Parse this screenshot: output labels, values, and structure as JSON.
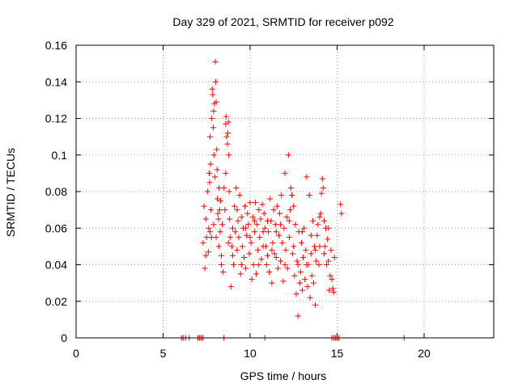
{
  "chart_data": {
    "type": "scatter",
    "title": "Day 329 of 2021, SRMTID for receiver p092",
    "xlabel": "GPS time / hours",
    "ylabel": "SRMTID / TECUs",
    "xlim": [
      0,
      24
    ],
    "ylim": [
      0,
      0.16
    ],
    "xticks": [
      0,
      5,
      10,
      15,
      20
    ],
    "xtick_labels": [
      "0",
      "5",
      "10",
      "15",
      "20"
    ],
    "yticks": [
      0,
      0.02,
      0.04,
      0.06,
      0.08,
      0.1,
      0.12,
      0.14,
      0.16
    ],
    "ytick_labels": [
      "0",
      "0.02",
      "0.04",
      "0.06",
      "0.08",
      "0.1",
      "0.12",
      "0.14",
      "0.16"
    ],
    "grid": true,
    "marker": "+",
    "color": "#ff0000",
    "grid_color": "#a0a0a0",
    "series": [
      {
        "name": "p092",
        "points": [
          [
            6.05,
            0
          ],
          [
            6.15,
            0
          ],
          [
            6.3,
            0
          ],
          [
            6.5,
            0
          ],
          [
            7.0,
            0
          ],
          [
            7.1,
            0
          ],
          [
            7.2,
            0
          ],
          [
            7.3,
            0
          ],
          [
            8.5,
            0
          ],
          [
            10.85,
            0
          ],
          [
            14.7,
            0
          ],
          [
            14.8,
            0
          ],
          [
            14.9,
            0
          ],
          [
            15.0,
            0
          ],
          [
            15.1,
            0
          ],
          [
            18.85,
            0
          ],
          [
            7.3,
            0.052
          ],
          [
            7.35,
            0.072
          ],
          [
            7.4,
            0.038
          ],
          [
            7.45,
            0.065
          ],
          [
            7.5,
            0.055
          ],
          [
            7.55,
            0.08
          ],
          [
            7.6,
            0.047
          ],
          [
            7.62,
            0.06
          ],
          [
            7.65,
            0.09
          ],
          [
            7.68,
            0.085
          ],
          [
            7.7,
            0.11
          ],
          [
            7.72,
            0.095
          ],
          [
            7.75,
            0.07
          ],
          [
            7.78,
            0.055
          ],
          [
            7.8,
            0.12
          ],
          [
            7.82,
            0.136
          ],
          [
            7.85,
            0.133
          ],
          [
            7.88,
            0.115
          ],
          [
            7.9,
            0.124
          ],
          [
            7.92,
            0.1
          ],
          [
            7.95,
            0.128
          ],
          [
            7.98,
            0.088
          ],
          [
            8.0,
            0.151
          ],
          [
            8.02,
            0.14
          ],
          [
            8.05,
            0.129
          ],
          [
            8.08,
            0.103
          ],
          [
            8.1,
            0.092
          ],
          [
            8.12,
            0.076
          ],
          [
            8.15,
            0.068
          ],
          [
            8.18,
            0.065
          ],
          [
            8.2,
            0.05
          ],
          [
            8.22,
            0.082
          ],
          [
            8.25,
            0.07
          ],
          [
            8.28,
            0.058
          ],
          [
            8.3,
            0.075
          ],
          [
            8.35,
            0.045
          ],
          [
            8.4,
            0.062
          ],
          [
            8.45,
            0.036
          ],
          [
            8.5,
            0.082
          ],
          [
            8.55,
            0.07
          ],
          [
            8.6,
            0.117
          ],
          [
            8.62,
            0.121
          ],
          [
            8.65,
            0.11
          ],
          [
            8.7,
            0.106
          ],
          [
            8.72,
            0.112
          ],
          [
            8.75,
            0.118
          ],
          [
            8.78,
            0.1
          ],
          [
            8.8,
            0.08
          ],
          [
            8.82,
            0.065
          ],
          [
            8.85,
            0.055
          ],
          [
            8.9,
            0.028
          ],
          [
            8.95,
            0.05
          ],
          [
            9.0,
            0.06
          ],
          [
            9.05,
            0.04
          ],
          [
            9.1,
            0.072
          ],
          [
            9.15,
            0.058
          ],
          [
            9.2,
            0.082
          ],
          [
            9.25,
            0.048
          ],
          [
            9.3,
            0.064
          ],
          [
            9.35,
            0.055
          ],
          [
            9.4,
            0.078
          ],
          [
            9.45,
            0.035
          ],
          [
            9.5,
            0.066
          ],
          [
            9.55,
            0.05
          ],
          [
            9.6,
            0.06
          ],
          [
            9.65,
            0.044
          ],
          [
            9.7,
            0.072
          ],
          [
            9.75,
            0.038
          ],
          [
            9.8,
            0.056
          ],
          [
            9.85,
            0.068
          ],
          [
            9.9,
            0.062
          ],
          [
            9.95,
            0.046
          ],
          [
            10.0,
            0.074
          ],
          [
            10.05,
            0.052
          ],
          [
            10.1,
            0.032
          ],
          [
            10.15,
            0.066
          ],
          [
            10.2,
            0.04
          ],
          [
            10.25,
            0.058
          ],
          [
            10.3,
            0.074
          ],
          [
            10.35,
            0.035
          ],
          [
            10.4,
            0.062
          ],
          [
            10.45,
            0.048
          ],
          [
            10.5,
            0.07
          ],
          [
            10.55,
            0.055
          ],
          [
            10.6,
            0.065
          ],
          [
            10.65,
            0.043
          ],
          [
            10.7,
            0.073
          ],
          [
            10.75,
            0.05
          ],
          [
            10.8,
            0.068
          ],
          [
            10.85,
            0.06
          ],
          [
            10.9,
            0.05
          ],
          [
            10.95,
            0.04
          ],
          [
            11.0,
            0.045
          ],
          [
            11.05,
            0.058
          ],
          [
            11.1,
            0.036
          ],
          [
            11.15,
            0.076
          ],
          [
            11.2,
            0.064
          ],
          [
            11.25,
            0.03
          ],
          [
            11.3,
            0.052
          ],
          [
            11.35,
            0.07
          ],
          [
            11.4,
            0.046
          ],
          [
            11.45,
            0.062
          ],
          [
            11.5,
            0.044
          ],
          [
            11.55,
            0.072
          ],
          [
            11.6,
            0.038
          ],
          [
            11.65,
            0.056
          ],
          [
            11.7,
            0.068
          ],
          [
            11.75,
            0.042
          ],
          [
            11.8,
            0.078
          ],
          [
            11.85,
            0.052
          ],
          [
            11.9,
            0.031
          ],
          [
            11.95,
            0.06
          ],
          [
            12.0,
            0.09
          ],
          [
            12.05,
            0.048
          ],
          [
            12.1,
            0.066
          ],
          [
            12.15,
            0.038
          ],
          [
            12.2,
            0.1
          ],
          [
            12.25,
            0.055
          ],
          [
            12.3,
            0.07
          ],
          [
            12.35,
            0.082
          ],
          [
            12.4,
            0.078
          ],
          [
            12.45,
            0.046
          ],
          [
            12.5,
            0.05
          ],
          [
            12.55,
            0.034
          ],
          [
            12.6,
            0.062
          ],
          [
            12.65,
            0.024
          ],
          [
            12.7,
            0.042
          ],
          [
            12.75,
            0.012
          ],
          [
            12.8,
            0.058
          ],
          [
            12.85,
            0.03
          ],
          [
            12.9,
            0.036
          ],
          [
            12.95,
            0.052
          ],
          [
            13.0,
            0.026
          ],
          [
            13.05,
            0.044
          ],
          [
            13.1,
            0.06
          ],
          [
            13.15,
            0.032
          ],
          [
            13.2,
            0.048
          ],
          [
            13.25,
            0.088
          ],
          [
            13.3,
            0.028
          ],
          [
            13.35,
            0.04
          ],
          [
            13.4,
            0.078
          ],
          [
            13.45,
            0.022
          ],
          [
            13.5,
            0.046
          ],
          [
            13.55,
            0.034
          ],
          [
            13.6,
            0.064
          ],
          [
            13.65,
            0.03
          ],
          [
            13.7,
            0.05
          ],
          [
            13.75,
            0.018
          ],
          [
            13.8,
            0.042
          ],
          [
            13.85,
            0.056
          ],
          [
            13.9,
            0.062
          ],
          [
            13.95,
            0.04
          ],
          [
            14.0,
            0.066
          ],
          [
            14.05,
            0.068
          ],
          [
            14.1,
            0.079
          ],
          [
            14.15,
            0.087
          ],
          [
            14.2,
            0.082
          ],
          [
            14.25,
            0.064
          ],
          [
            14.3,
            0.05
          ],
          [
            14.35,
            0.06
          ],
          [
            14.4,
            0.04
          ],
          [
            14.45,
            0.054
          ],
          [
            14.5,
            0.06
          ],
          [
            14.55,
            0.026
          ],
          [
            14.6,
            0.034
          ],
          [
            14.65,
            0.048
          ],
          [
            14.7,
            0.032
          ],
          [
            14.75,
            0.027
          ],
          [
            14.8,
            0.025
          ],
          [
            14.85,
            0.044
          ],
          [
            15.2,
            0.073
          ],
          [
            15.25,
            0.068
          ],
          [
            7.45,
            0.045
          ],
          [
            7.7,
            0.058
          ],
          [
            7.9,
            0.062
          ],
          [
            8.05,
            0.055
          ],
          [
            8.35,
            0.04
          ],
          [
            8.6,
            0.09
          ],
          [
            8.75,
            0.052
          ],
          [
            9.0,
            0.045
          ],
          [
            9.25,
            0.07
          ],
          [
            9.5,
            0.04
          ],
          [
            9.75,
            0.06
          ],
          [
            10.0,
            0.055
          ],
          [
            10.25,
            0.064
          ],
          [
            10.5,
            0.04
          ],
          [
            10.75,
            0.058
          ],
          [
            11.0,
            0.064
          ],
          [
            11.25,
            0.048
          ],
          [
            11.5,
            0.058
          ],
          [
            11.75,
            0.062
          ],
          [
            12.0,
            0.04
          ],
          [
            12.25,
            0.064
          ],
          [
            12.5,
            0.072
          ],
          [
            12.75,
            0.04
          ],
          [
            13.0,
            0.058
          ],
          [
            13.25,
            0.04
          ],
          [
            13.5,
            0.056
          ],
          [
            13.75,
            0.048
          ],
          [
            14.0,
            0.05
          ],
          [
            14.25,
            0.046
          ],
          [
            14.5,
            0.042
          ]
        ]
      }
    ]
  }
}
